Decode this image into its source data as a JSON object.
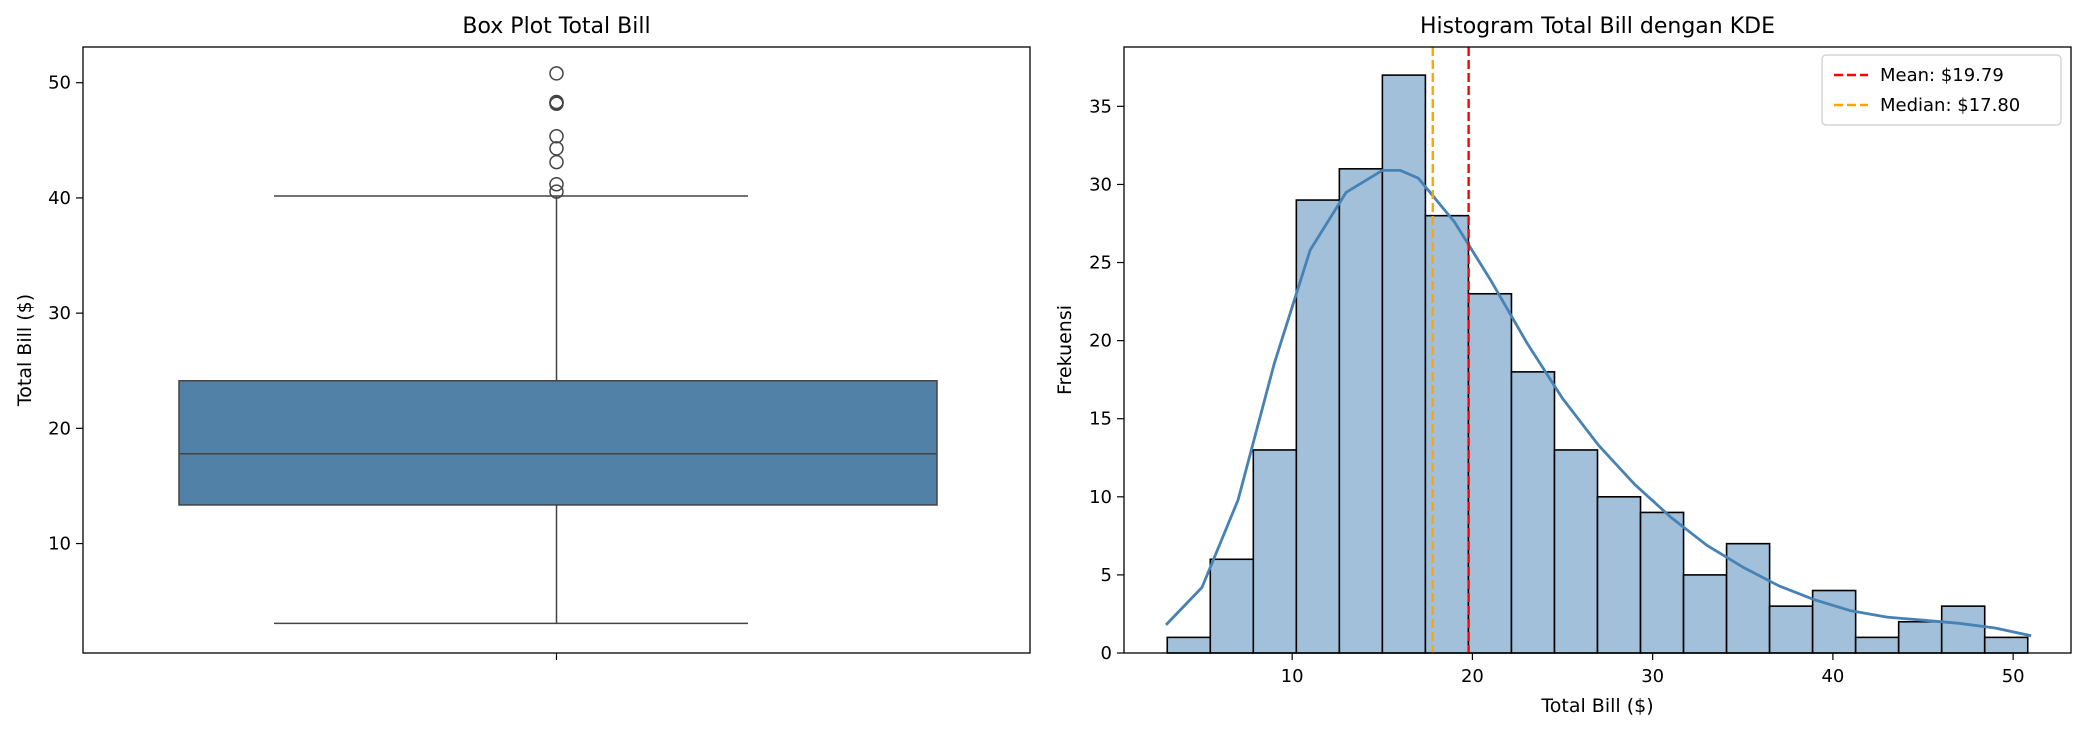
{
  "chart_data": [
    {
      "type": "box",
      "title": "Box Plot Total Bill",
      "ylabel": "Total Bill ($)",
      "xlabel": "",
      "ylim": [
        0.5,
        53.1
      ],
      "yticks": [
        "10",
        "20",
        "30",
        "40",
        "50"
      ],
      "box": {
        "whisker_low": 3.07,
        "q1": 13.35,
        "median": 17.8,
        "q3": 24.13,
        "whisker_high": 40.17,
        "outliers": [
          40.55,
          41.19,
          43.11,
          44.3,
          45.35,
          48.17,
          48.27,
          48.33,
          50.81
        ]
      },
      "color": "#5181a7",
      "grid": false
    },
    {
      "type": "bar",
      "title": "Histogram Total Bill dengan KDE",
      "xlabel": "Total Bill ($)",
      "ylabel": "Frekuensi",
      "xlim": [
        0.67,
        53.21
      ],
      "ylim": [
        0,
        38.8
      ],
      "xticks": [
        "10",
        "20",
        "30",
        "40",
        "50"
      ],
      "yticks": [
        "0",
        "5",
        "10",
        "15",
        "20",
        "25",
        "30",
        "35"
      ],
      "bins": {
        "start": 3.07,
        "width": 2.387,
        "counts": [
          1,
          6,
          13,
          29,
          31,
          37,
          28,
          23,
          18,
          13,
          10,
          9,
          5,
          7,
          3,
          4,
          1,
          2,
          3,
          1
        ]
      },
      "kde": {
        "x": [
          3.0,
          5.0,
          7.0,
          9.0,
          11.0,
          13.0,
          15.0,
          16.0,
          17.0,
          19.0,
          21.0,
          23.0,
          25.0,
          27.0,
          29.0,
          31.0,
          33.0,
          35.0,
          37.0,
          39.0,
          41.0,
          43.0,
          45.0,
          47.0,
          49.0,
          51.0
        ],
        "y": [
          1.8,
          4.2,
          9.8,
          18.5,
          25.8,
          29.5,
          30.9,
          30.9,
          30.4,
          27.6,
          23.9,
          19.9,
          16.3,
          13.3,
          10.8,
          8.7,
          6.9,
          5.5,
          4.3,
          3.4,
          2.7,
          2.3,
          2.1,
          1.9,
          1.6,
          1.1
        ]
      },
      "lines": [
        {
          "label": "Mean: $19.79",
          "value": 19.79,
          "color": "#ff0000"
        },
        {
          "label": "Median: $17.80",
          "value": 17.8,
          "color": "#ffa500"
        }
      ],
      "bar_color": "#a3c0da",
      "kde_color": "#4682b4",
      "legend": "top-right",
      "grid": false
    }
  ]
}
